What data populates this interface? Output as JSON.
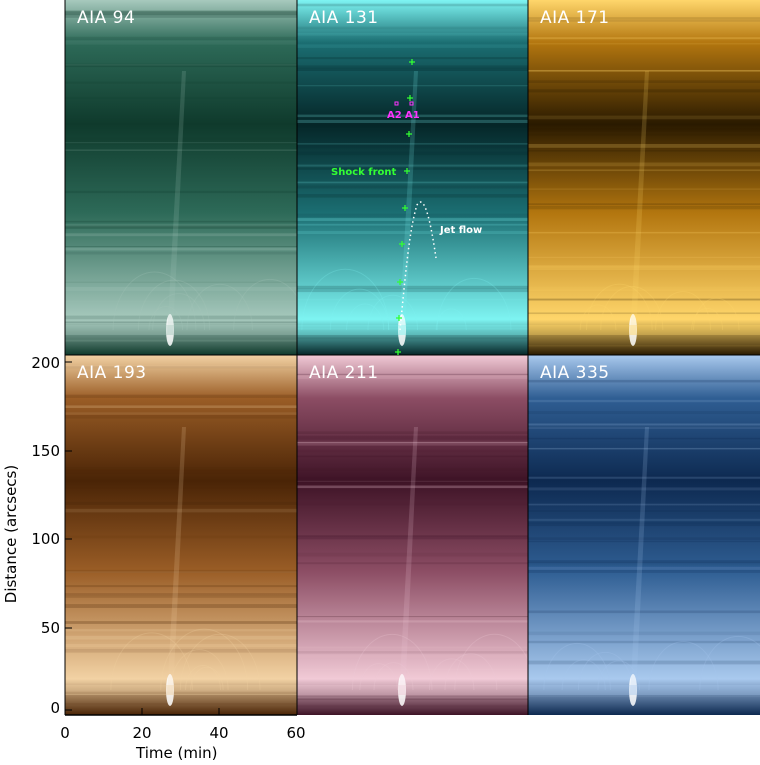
{
  "panels": [
    {
      "label": "AIA 94",
      "color_dark": "#0f3a2c",
      "color_mid": "#2d6a58",
      "color_light": "#a7c9bd"
    },
    {
      "label": "AIA 131",
      "color_dark": "#052628",
      "color_mid": "#1b6e72",
      "color_light": "#7ef4f2"
    },
    {
      "label": "AIA 171",
      "color_dark": "#2a1a00",
      "color_mid": "#b3760f",
      "color_light": "#ffd66b"
    },
    {
      "label": "AIA 193",
      "color_dark": "#4a2406",
      "color_mid": "#9a5d26",
      "color_light": "#f2d2a4"
    },
    {
      "label": "AIA 211",
      "color_dark": "#3e1326",
      "color_mid": "#8c4d64",
      "color_light": "#f1cad6"
    },
    {
      "label": "AIA 335",
      "color_dark": "#0d2950",
      "color_mid": "#2f5e93",
      "color_light": "#a9c9ee"
    }
  ],
  "annotations": {
    "a2": "A2",
    "a1": "A1",
    "shock_front": "Shock front",
    "jet_flow": "Jet flow",
    "green": "#33ff33",
    "magenta": "#ff33ff",
    "white": "#ffffff"
  },
  "axes": {
    "ylabel": "Distance (arcsecs)",
    "xlabel": "Time (min)",
    "yticks": [
      "200",
      "150",
      "100",
      "50",
      "0"
    ],
    "xticks": [
      "0",
      "20",
      "40",
      "60"
    ]
  }
}
